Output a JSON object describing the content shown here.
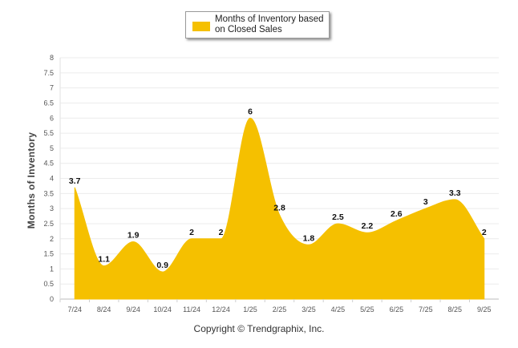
{
  "chart_data": {
    "type": "area",
    "categories": [
      "7/24",
      "8/24",
      "9/24",
      "10/24",
      "11/24",
      "12/24",
      "1/25",
      "2/25",
      "3/25",
      "4/25",
      "5/25",
      "6/25",
      "7/25",
      "8/25",
      "9/25"
    ],
    "series": [
      {
        "name": "Months of Inventory based on Closed Sales",
        "values": [
          3.7,
          1.1,
          1.9,
          0.9,
          2,
          2,
          6,
          2.8,
          1.8,
          2.5,
          2.2,
          2.6,
          3,
          3.3,
          2
        ]
      }
    ],
    "data_labels": [
      "3.7",
      "1.1",
      "1.9",
      "0.9",
      "2",
      "2",
      "6",
      "2.8",
      "1.8",
      "2.5",
      "2.2",
      "2.6",
      "3",
      "3.3",
      "2"
    ],
    "ylabel": "Months of Inventory",
    "xlabel": "",
    "ylim": [
      0,
      8
    ],
    "yticks": [
      "0",
      "0.5",
      "1",
      "1.5",
      "2",
      "2.5",
      "3",
      "3.5",
      "4",
      "4.5",
      "5",
      "5.5",
      "6",
      "6.5",
      "7",
      "7.5",
      "8"
    ],
    "grid": true,
    "legend_position": "top-center",
    "color": "#f5c000"
  },
  "legend": {
    "label": "Months of Inventory based on Closed Sales"
  },
  "footer": {
    "copyright": "Copyright © Trendgraphix, Inc."
  }
}
